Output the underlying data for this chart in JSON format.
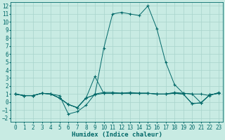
{
  "xlabel": "Humidex (Indice chaleur)",
  "xlim": [
    -0.5,
    23.5
  ],
  "ylim": [
    -2.5,
    12.5
  ],
  "xticks": [
    0,
    1,
    2,
    3,
    4,
    5,
    6,
    7,
    8,
    9,
    10,
    11,
    12,
    13,
    14,
    15,
    16,
    17,
    18,
    19,
    20,
    21,
    22,
    23
  ],
  "yticks": [
    -2,
    -1,
    0,
    1,
    2,
    3,
    4,
    5,
    6,
    7,
    8,
    9,
    10,
    11,
    12
  ],
  "background_color": "#c8ebe3",
  "grid_color": "#a8d4cc",
  "line_color": "#006868",
  "lines": [
    [
      1.0,
      0.8,
      0.8,
      1.1,
      1.0,
      0.8,
      -1.5,
      -1.2,
      -0.4,
      1.0,
      1.2,
      1.2,
      1.1,
      1.2,
      1.1,
      1.1,
      1.0,
      1.0,
      1.2,
      1.1,
      1.0,
      1.0,
      0.8,
      1.2
    ],
    [
      1.0,
      0.8,
      0.8,
      1.1,
      1.0,
      0.5,
      -0.3,
      -0.7,
      0.5,
      0.9,
      1.1,
      1.1,
      1.1,
      1.1,
      1.1,
      1.1,
      1.0,
      1.0,
      1.1,
      1.0,
      -0.2,
      -0.1,
      0.9,
      1.1
    ],
    [
      1.0,
      0.8,
      0.8,
      1.1,
      1.0,
      0.5,
      -0.3,
      -0.7,
      0.5,
      0.9,
      6.7,
      11.0,
      11.2,
      11.0,
      10.8,
      12.0,
      9.2,
      5.0,
      2.2,
      1.1,
      1.0,
      -0.1,
      0.9,
      1.1
    ],
    [
      1.0,
      0.8,
      0.8,
      1.1,
      1.0,
      0.5,
      -0.3,
      -0.7,
      0.5,
      3.2,
      1.1,
      1.1,
      1.1,
      1.1,
      1.1,
      1.1,
      1.0,
      1.0,
      1.1,
      1.0,
      -0.2,
      -0.1,
      0.9,
      1.1
    ]
  ],
  "figsize": [
    3.2,
    2.0
  ],
  "dpi": 100,
  "tick_fontsize": 5.5,
  "xlabel_fontsize": 6.5
}
